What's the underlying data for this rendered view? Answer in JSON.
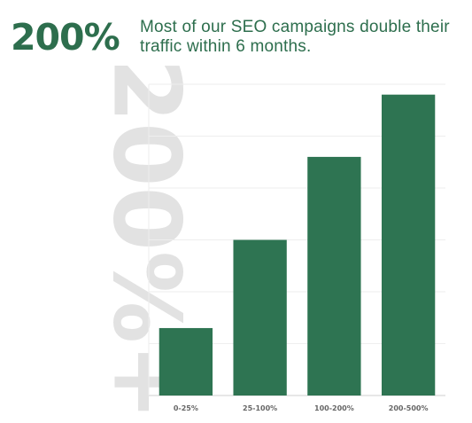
{
  "headline": {
    "big_stat": "200%",
    "text": "Most of our SEO campaigns double their traffic within 6 months."
  },
  "watermark_text": "200%+",
  "colors": {
    "accent": "#2d6e4d",
    "bar": "#2e7452",
    "watermark": "#e2e2e2",
    "grid": "#eeeeee"
  },
  "chart_data": {
    "type": "bar",
    "categories": [
      "0-25%",
      "25-100%",
      "100-200%",
      "200-500%"
    ],
    "values": [
      13,
      30,
      46,
      58
    ],
    "ylim": [
      0,
      60
    ],
    "grid": true,
    "legend": "none",
    "ytick_labels_visible": false
  }
}
